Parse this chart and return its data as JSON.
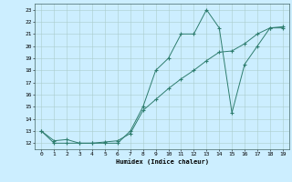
{
  "line1_x": [
    0,
    1,
    2,
    3,
    4,
    5,
    6,
    7,
    8,
    9,
    10,
    11,
    12,
    13,
    14,
    15,
    16,
    17,
    18,
    19
  ],
  "line1_y": [
    13,
    12,
    12,
    12,
    12,
    12,
    12,
    13,
    15,
    18,
    19,
    21,
    21,
    23,
    21.5,
    14.5,
    18.5,
    20,
    21.5,
    21.5
  ],
  "line2_x": [
    0,
    1,
    2,
    3,
    4,
    5,
    6,
    7,
    8,
    9,
    10,
    11,
    12,
    13,
    14,
    15,
    16,
    17,
    18,
    19
  ],
  "line2_y": [
    13,
    12.2,
    12.3,
    12,
    12,
    12.1,
    12.2,
    12.8,
    14.7,
    15.6,
    16.5,
    17.3,
    18.0,
    18.8,
    19.5,
    19.6,
    20.2,
    21.0,
    21.5,
    21.6
  ],
  "color": "#2e7d6e",
  "bg_color": "#cceeff",
  "grid_color": "#aacccc",
  "xlabel": "Humidex (Indice chaleur)",
  "ylim": [
    11.5,
    23.5
  ],
  "xlim": [
    -0.5,
    19.5
  ],
  "yticks": [
    12,
    13,
    14,
    15,
    16,
    17,
    18,
    19,
    20,
    21,
    22,
    23
  ],
  "xticks": [
    0,
    1,
    2,
    3,
    4,
    5,
    6,
    7,
    8,
    9,
    10,
    11,
    12,
    13,
    14,
    15,
    16,
    17,
    18,
    19
  ],
  "marker": "+"
}
